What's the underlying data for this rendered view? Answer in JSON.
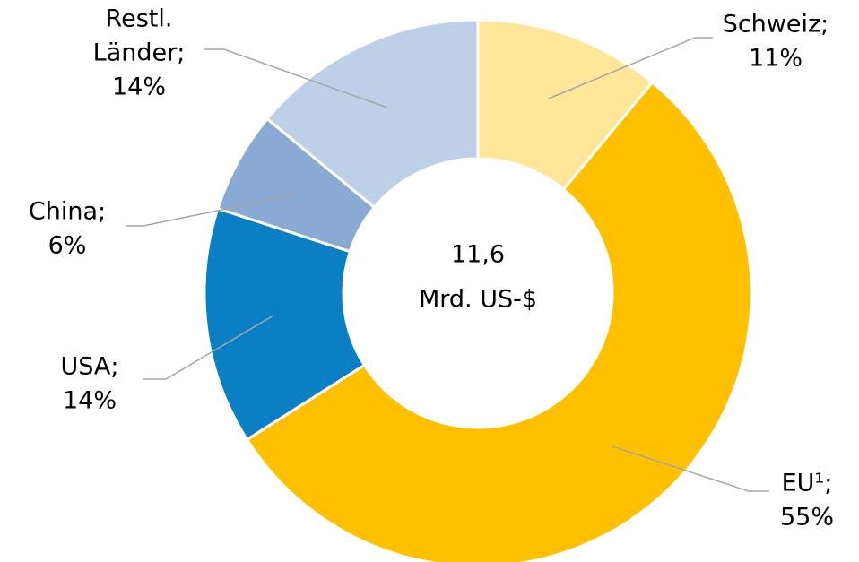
{
  "chart_data": {
    "type": "donut",
    "categories": [
      "Schweiz",
      "EU¹",
      "USA",
      "China",
      "Restl. Länder"
    ],
    "values": [
      11,
      55,
      14,
      6,
      14
    ],
    "value_labels": [
      "11%",
      "55%",
      "14%",
      "6%",
      "14%"
    ],
    "label_separator": ";",
    "colors": [
      "#FFE699",
      "#FFC000",
      "#0A7FC4",
      "#8AAAD4",
      "#BDD0E8"
    ],
    "center_text": [
      "11,6",
      "Mrd. US-$"
    ]
  }
}
